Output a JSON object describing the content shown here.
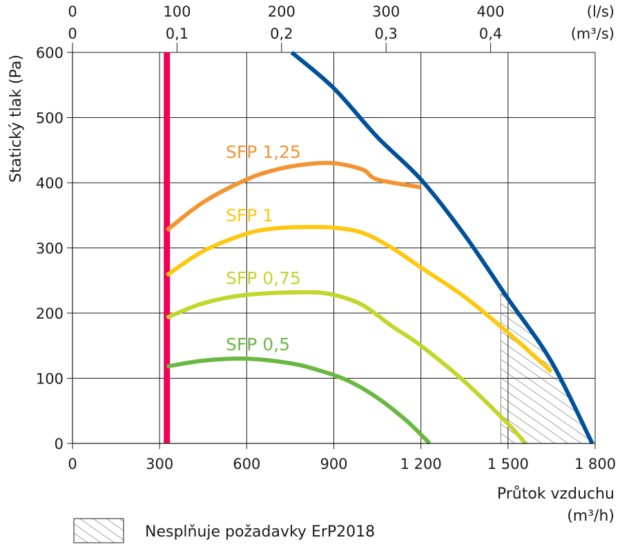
{
  "chart_data": {
    "type": "line",
    "xlabel": "Průtok vzduchu",
    "xlabel_unit": "(m³/h)",
    "ylabel": "Statický tlak (Pa)",
    "xlim": [
      0,
      1800
    ],
    "ylim": [
      0,
      600
    ],
    "x_ticks": [
      {
        "value": 0,
        "label": "0"
      },
      {
        "value": 300,
        "label": "300"
      },
      {
        "value": 600,
        "label": "600"
      },
      {
        "value": 900,
        "label": "900"
      },
      {
        "value": 1200,
        "label": "1 200"
      },
      {
        "value": 1500,
        "label": "1 500"
      },
      {
        "value": 1800,
        "label": "1 800"
      }
    ],
    "y_ticks": [
      {
        "value": 0,
        "label": "0"
      },
      {
        "value": 100,
        "label": "100"
      },
      {
        "value": 200,
        "label": "200"
      },
      {
        "value": 300,
        "label": "300"
      },
      {
        "value": 400,
        "label": "400"
      },
      {
        "value": 500,
        "label": "500"
      },
      {
        "value": 600,
        "label": "600"
      }
    ],
    "top_axis_ls": {
      "unit": "(l/s)",
      "ticks": [
        {
          "value": 0,
          "label": "0"
        },
        {
          "value": 100,
          "label": "100"
        },
        {
          "value": 200,
          "label": "200"
        },
        {
          "value": 300,
          "label": "300"
        },
        {
          "value": 400,
          "label": "400"
        }
      ]
    },
    "top_axis_m3s": {
      "unit": "(m³/s)",
      "ticks": [
        {
          "value": 0,
          "label": "0"
        },
        {
          "value": 0.1,
          "label": "0,1"
        },
        {
          "value": 0.2,
          "label": "0,2"
        },
        {
          "value": 0.3,
          "label": "0,3"
        },
        {
          "value": 0.4,
          "label": "0,4"
        }
      ]
    },
    "grid": true,
    "series": [
      {
        "color": "#00509a",
        "points": [
          [
            755,
            600
          ],
          [
            900,
            545
          ],
          [
            1050,
            470
          ],
          [
            1200,
            405
          ],
          [
            1350,
            320
          ],
          [
            1500,
            222
          ],
          [
            1650,
            125
          ],
          [
            1790,
            0
          ]
        ]
      },
      {
        "color": "#f20056",
        "points": [
          [
            325,
            600
          ],
          [
            325,
            0
          ]
        ]
      },
      {
        "name": "SFP 1,25",
        "color": "#f39331",
        "points": [
          [
            325,
            327
          ],
          [
            450,
            370
          ],
          [
            600,
            405
          ],
          [
            700,
            420
          ],
          [
            800,
            428
          ],
          [
            900,
            430
          ],
          [
            1000,
            420
          ],
          [
            1050,
            405
          ],
          [
            1200,
            393
          ]
        ]
      },
      {
        "name": "SFP 1",
        "color": "#fdc80f",
        "points": [
          [
            325,
            258
          ],
          [
            450,
            295
          ],
          [
            600,
            322
          ],
          [
            700,
            330
          ],
          [
            800,
            332
          ],
          [
            900,
            331
          ],
          [
            1000,
            323
          ],
          [
            1100,
            300
          ],
          [
            1200,
            270
          ],
          [
            1350,
            225
          ],
          [
            1500,
            170
          ],
          [
            1650,
            110
          ]
        ]
      },
      {
        "name": "SFP 0,75",
        "color": "#c2d62c",
        "points": [
          [
            325,
            193
          ],
          [
            450,
            215
          ],
          [
            600,
            228
          ],
          [
            800,
            232
          ],
          [
            900,
            228
          ],
          [
            1000,
            212
          ],
          [
            1100,
            180
          ],
          [
            1200,
            150
          ],
          [
            1350,
            95
          ],
          [
            1500,
            30
          ],
          [
            1560,
            0
          ]
        ]
      },
      {
        "name": "SFP 0,5",
        "color": "#6ab843",
        "points": [
          [
            325,
            118
          ],
          [
            450,
            127
          ],
          [
            600,
            130
          ],
          [
            750,
            123
          ],
          [
            850,
            112
          ],
          [
            950,
            96
          ],
          [
            1050,
            70
          ],
          [
            1150,
            35
          ],
          [
            1230,
            0
          ]
        ]
      }
    ],
    "hatched_region": {
      "points": [
        [
          1475,
          0
        ],
        [
          1475,
          230
        ],
        [
          1505,
          222
        ],
        [
          1650,
          125
        ],
        [
          1790,
          0
        ]
      ]
    },
    "legend": {
      "label": "Nesplňuje požadavky ErP2018",
      "position": "bottom-left"
    }
  }
}
